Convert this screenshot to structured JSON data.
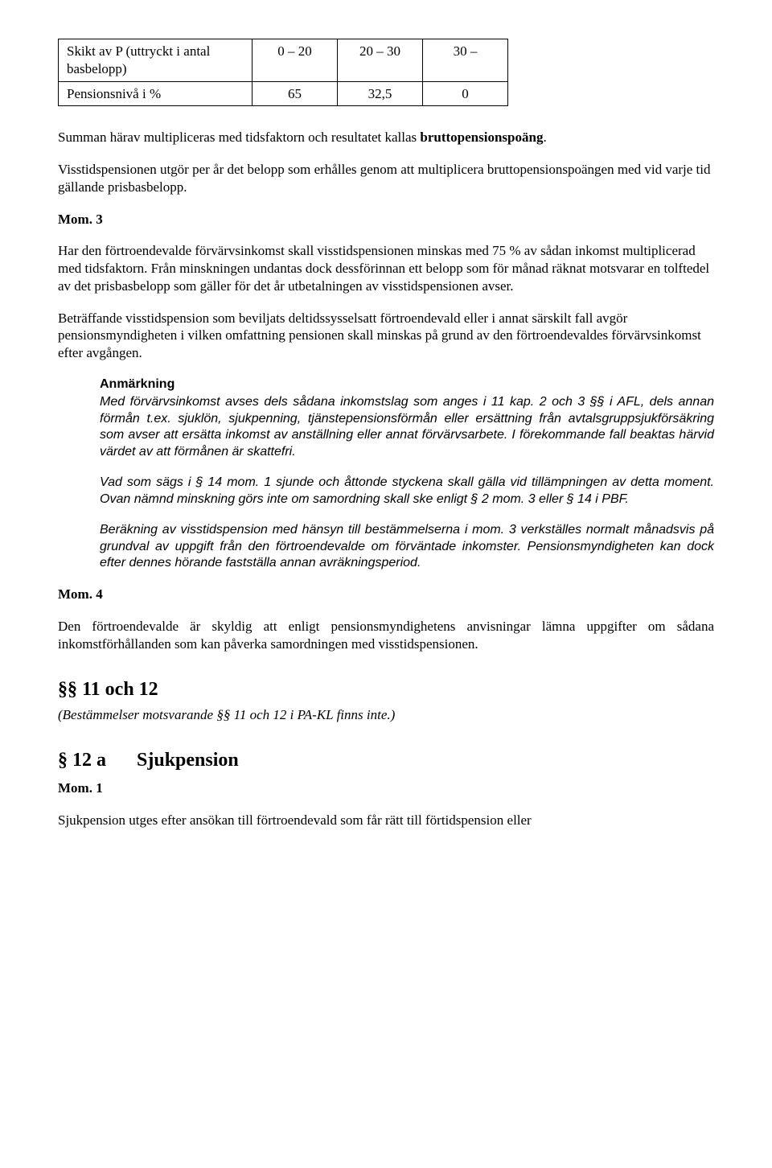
{
  "table": {
    "r1c1a": "Skikt av P   (uttryckt i antal",
    "r1c1b": "basbelopp)",
    "r1c2": "0 – 20",
    "r1c3": "20 – 30",
    "r1c4": "30 –",
    "r2c1": "Pensionsnivå i %",
    "r2c2": "65",
    "r2c3": "32,5",
    "r2c4": "0"
  },
  "p1a": "Summan härav multipliceras med tidsfaktorn och resultatet kallas ",
  "p1b": "bruttopensionspoäng",
  "p1c": ".",
  "p2": "Visstidspensionen utgör per år det belopp som erhålles genom att multiplicera bruttopensionspoängen med vid varje tid gällande prisbasbelopp.",
  "mom3": "Mom. 3",
  "p3": "Har den förtroendevalde förvärvsinkomst skall visstidspensionen minskas med 75 % av sådan inkomst multiplicerad med tidsfaktorn. Från minskningen undantas dock dessförinnan ett belopp som för månad räknat motsvarar en tolftedel av det prisbasbelopp som gäller för det år utbetalningen av visstidspensionen avser.",
  "p4": "Beträffande visstidspension som beviljats deltidssysselsatt förtroendevald eller i annat särskilt fall avgör pensionsmyndigheten i vilken omfattning pensionen skall minskas på grund av den förtroendevaldes förvärvsinkomst efter avgången.",
  "anm": {
    "head": "Anmärkning",
    "a1": "Med förvärvsinkomst avses dels sådana inkomstslag som anges i 11 kap. 2 och 3 §§ i AFL, dels annan förmån t.ex. sjuklön, sjukpenning, tjänstepensionsförmån eller ersättning från avtalsgruppsjukförsäkring som avser att ersätta inkomst av anställning eller annat förvärvsarbete. I förekommande fall beaktas härvid värdet av att förmånen är skattefri.",
    "a2": "Vad som sägs i § 14 mom. 1 sjunde och åttonde styckena skall gälla vid tillämpningen av detta moment. Ovan nämnd minskning görs inte om samordning skall ske enligt § 2 mom. 3 eller § 14 i PBF.",
    "a3": "Beräkning av visstidspension med hänsyn till bestämmelserna i mom. 3 verkställes normalt månadsvis på grundval av uppgift från den förtroendevalde om förväntade inkomster. Pensionsmyndigheten kan dock efter dennes hörande fastställa annan avräkningsperiod."
  },
  "mom4": "Mom. 4",
  "p5": "Den förtroendevalde är skyldig att enligt pensionsmyndighetens anvisningar lämna uppgifter om sådana inkomstförhållanden som kan påverka samordningen med visstidspensionen.",
  "sec11": "§§ 11 och 12",
  "sec11sub": "(Bestämmelser motsvarande §§ 11 och 12 i PA-KL finns inte.)",
  "sec12a_num": "§ 12 a",
  "sec12a_title": "Sjukpension",
  "mom1": "Mom. 1",
  "p6": "Sjukpension utges efter ansökan till förtroendevald som får rätt till förtidspension eller"
}
